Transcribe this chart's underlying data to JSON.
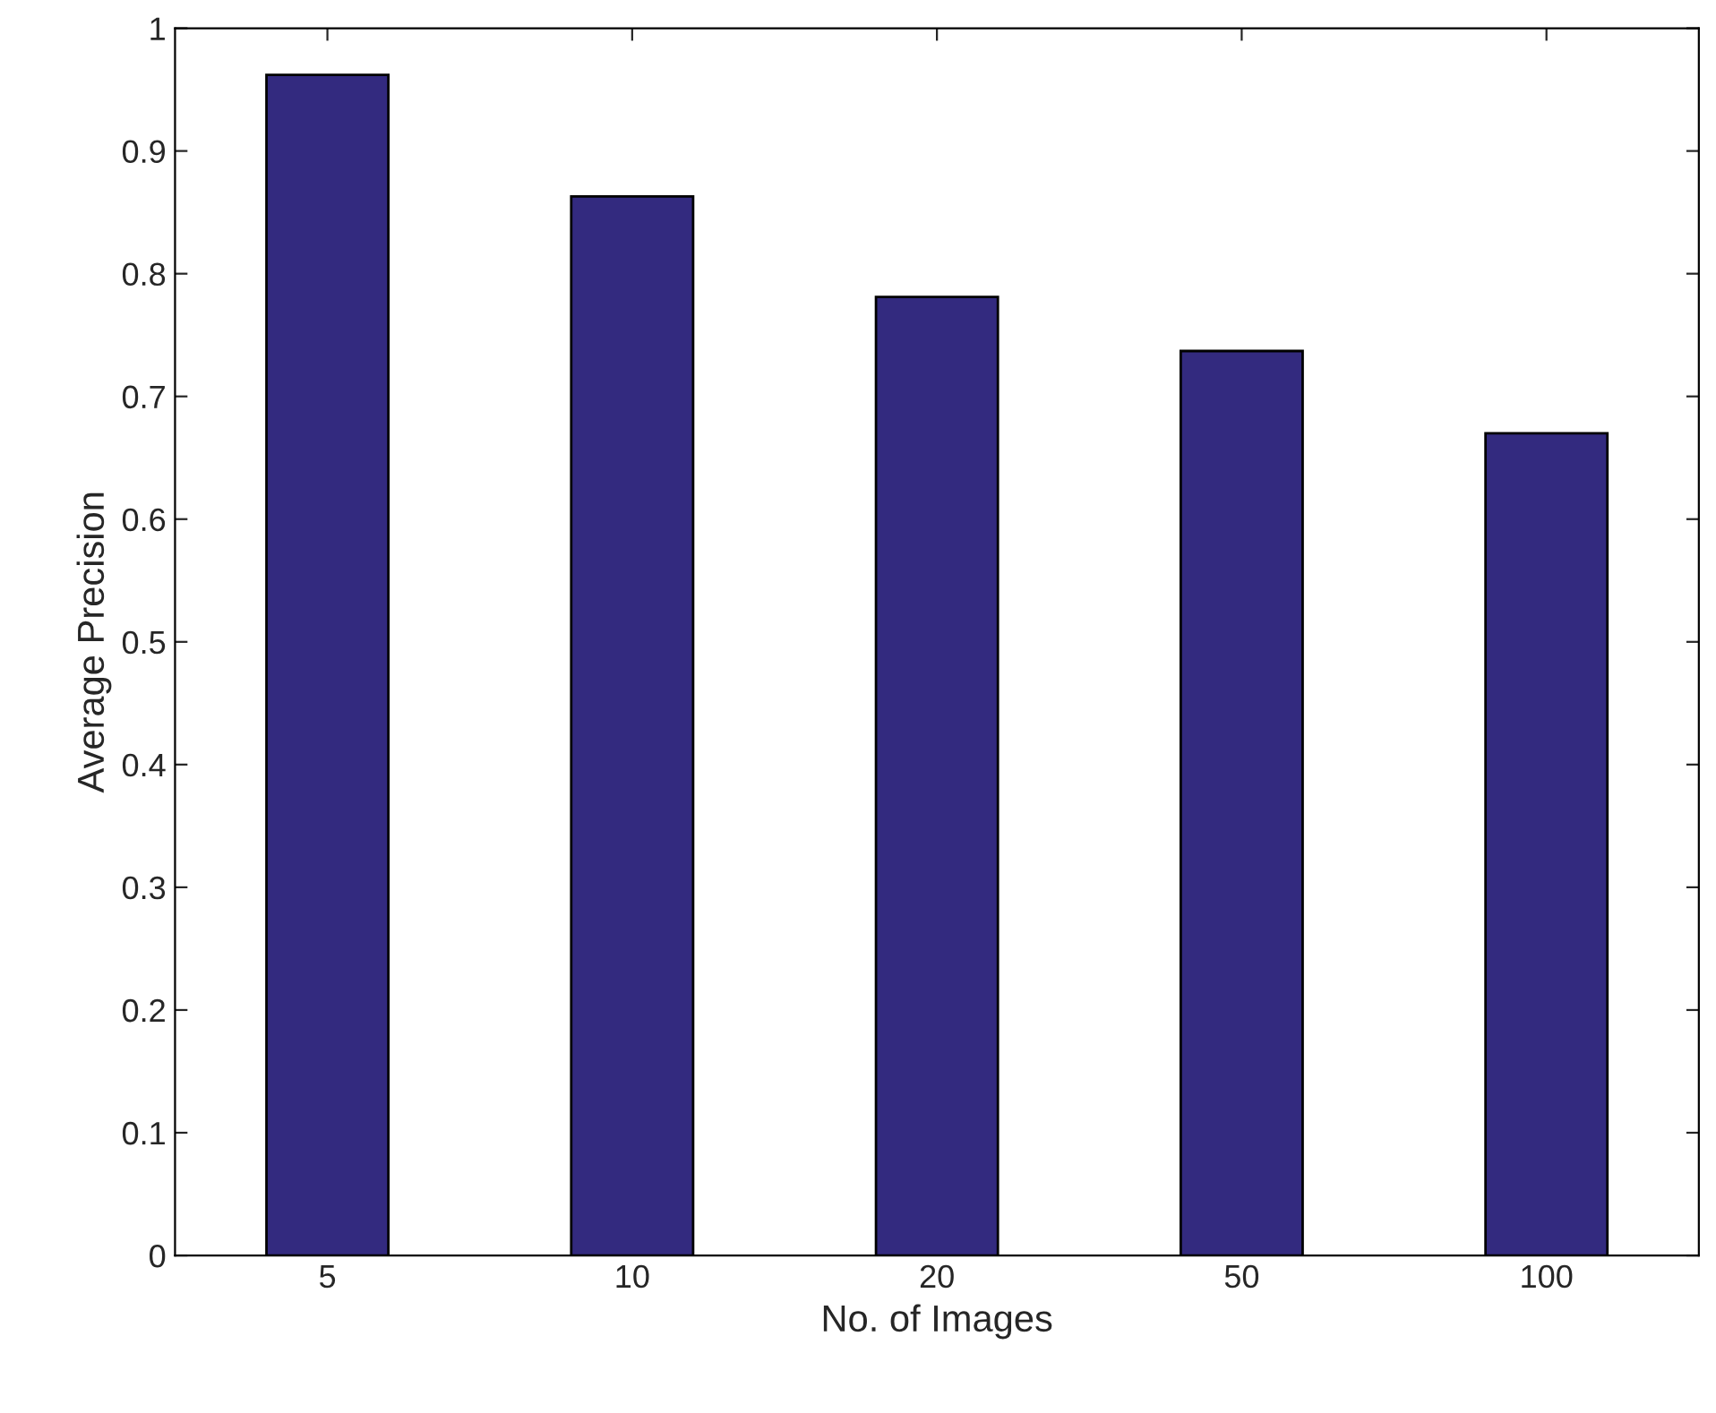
{
  "chart_data": {
    "type": "bar",
    "xlabel": "No. of Images",
    "ylabel": "Average Precision",
    "categories": [
      "5",
      "10",
      "20",
      "50",
      "100"
    ],
    "values": [
      0.962,
      0.863,
      0.781,
      0.737,
      0.67
    ],
    "color": "#332a7f",
    "ylim": [
      0,
      1
    ],
    "yticks": [
      0,
      0.1,
      0.2,
      0.3,
      0.4,
      0.5,
      0.6,
      0.7,
      0.8,
      0.9,
      1
    ],
    "grid": false
  }
}
